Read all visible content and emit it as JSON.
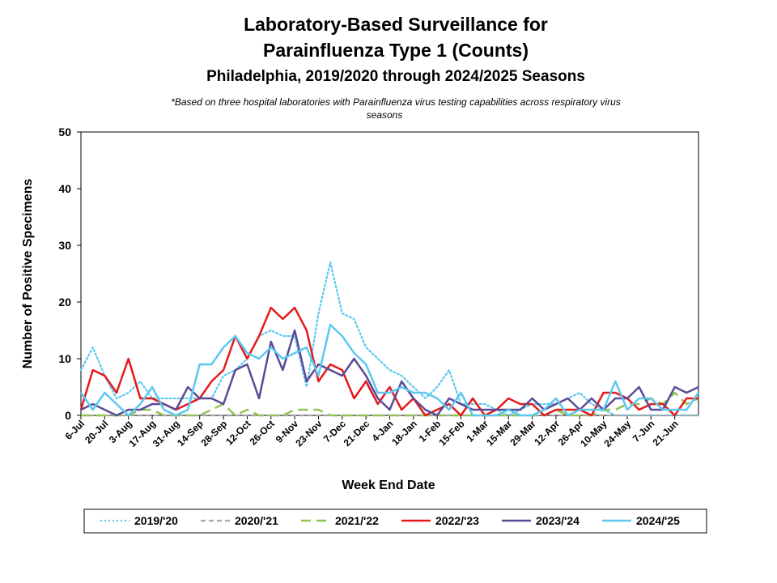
{
  "title_line1": "Laboratory-Based Surveillance for",
  "title_line2": "Parainfluenza Type 1 (Counts)",
  "subtitle": "Philadelphia, 2019/2020 through 2024/2025 Seasons",
  "footnote_line1": "*Based on three hospital laboratories with Parainfluenza virus testing capabilities across respiratory virus",
  "footnote_line2": "seasons",
  "chart_data": {
    "type": "line",
    "xlabel": "Week End Date",
    "ylabel": "Number of Positive Specimens",
    "ylim": [
      0,
      50
    ],
    "yticks": [
      0,
      10,
      20,
      30,
      40,
      50
    ],
    "grid": false,
    "legend_position": "bottom",
    "x_labels": [
      "6-Jul",
      "20-Jul",
      "3-Aug",
      "17-Aug",
      "31-Aug",
      "14-Sep",
      "28-Sep",
      "12-Oct",
      "26-Oct",
      "9-Nov",
      "23-Nov",
      "7-Dec",
      "21-Dec",
      "4-Jan",
      "18-Jan",
      "1-Feb",
      "15-Feb",
      "1-Mar",
      "15-Mar",
      "29-Mar",
      "12-Apr",
      "26-Apr",
      "10-May",
      "24-May",
      "7-Jun",
      "21-Jun"
    ],
    "series": [
      {
        "name": "2019/'20",
        "color": "#5bc8f0",
        "dash": "dotted",
        "values": [
          8,
          12,
          7,
          3,
          4,
          6,
          3,
          3,
          3,
          3,
          3,
          3,
          7,
          8,
          10,
          14,
          15,
          14,
          14,
          5,
          18,
          27,
          18,
          17,
          12,
          10,
          8,
          7,
          5,
          3,
          5,
          8,
          2,
          2,
          2,
          1,
          0,
          1,
          2,
          2,
          2,
          3,
          4,
          2,
          1,
          0,
          0,
          0,
          0,
          0,
          0,
          0,
          0
        ]
      },
      {
        "name": "2020/'21",
        "color": "#a6a6a6",
        "dash": "dashed",
        "values": [
          0,
          0,
          0,
          0,
          0,
          0,
          0,
          0,
          0,
          0,
          0,
          0,
          0,
          0,
          0,
          0,
          0,
          0,
          0,
          0,
          0,
          0,
          0,
          0,
          0,
          0,
          0,
          0,
          0,
          0,
          0,
          0,
          0,
          0,
          0,
          0,
          0,
          0,
          0,
          0,
          0,
          0,
          0,
          0,
          0,
          0,
          0,
          0,
          0,
          0,
          0,
          0,
          0
        ]
      },
      {
        "name": "2021/'22",
        "color": "#92c353",
        "dash": "longdash",
        "values": [
          0,
          0,
          0,
          0,
          0,
          1,
          1,
          0,
          0,
          0,
          0,
          1,
          2,
          0,
          1,
          0,
          0,
          0,
          1,
          1,
          1,
          0,
          0,
          0,
          0,
          0,
          0,
          0,
          0,
          0,
          0,
          0,
          0,
          0,
          0,
          0,
          0,
          0,
          0,
          0,
          1,
          0,
          0,
          0,
          1,
          1,
          2,
          2,
          3,
          2,
          4,
          2,
          3
        ]
      },
      {
        "name": "2022/'23",
        "color": "#e31a1c",
        "dash": "solid",
        "values": [
          1,
          8,
          7,
          4,
          10,
          3,
          3,
          2,
          1,
          2,
          3,
          6,
          8,
          14,
          10,
          14,
          19,
          17,
          19,
          15,
          6,
          9,
          8,
          3,
          6,
          2,
          5,
          1,
          3,
          0,
          1,
          2,
          0,
          3,
          0,
          1,
          3,
          2,
          2,
          0,
          1,
          1,
          1,
          0,
          4,
          4,
          3,
          1,
          2,
          2,
          0,
          3,
          3
        ]
      },
      {
        "name": "2023/'24",
        "color": "#5b4a96",
        "dash": "solid",
        "values": [
          1,
          2,
          1,
          0,
          1,
          1,
          2,
          2,
          1,
          5,
          3,
          3,
          2,
          8,
          9,
          3,
          13,
          8,
          15,
          6,
          9,
          8,
          7,
          10,
          7,
          3,
          1,
          6,
          3,
          1,
          0,
          3,
          2,
          1,
          1,
          1,
          1,
          1,
          3,
          1,
          2,
          3,
          1,
          3,
          1,
          3,
          3,
          5,
          1,
          1,
          5,
          4,
          5
        ]
      },
      {
        "name": "2024/'25",
        "color": "#5bc8f0",
        "dash": "solid",
        "values": [
          4,
          1,
          4,
          2,
          0,
          2,
          5,
          1,
          0,
          1,
          9,
          9,
          12,
          14,
          11,
          10,
          12,
          10,
          11,
          12,
          7,
          16,
          14,
          11,
          9,
          4,
          4,
          5,
          4,
          4,
          3,
          1,
          4,
          0,
          0,
          0,
          1,
          0,
          0,
          1,
          3,
          0,
          1,
          1,
          1,
          6,
          1,
          3,
          3,
          1,
          1,
          1,
          4
        ]
      }
    ]
  }
}
